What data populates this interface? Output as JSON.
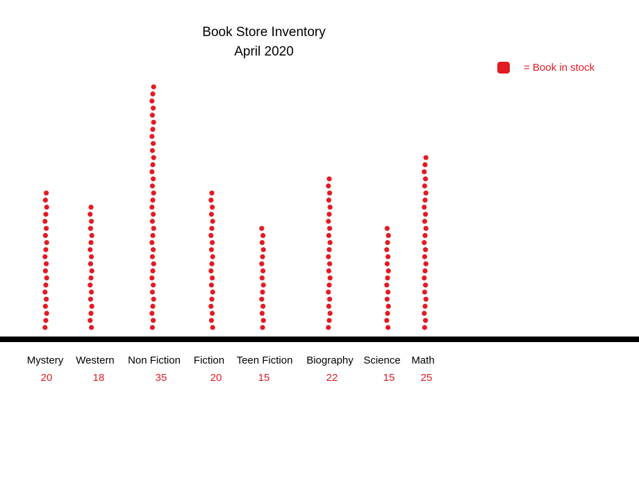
{
  "title": "Book Store Inventory",
  "subtitle": "April 2020",
  "legend": {
    "label": "= Book in stock"
  },
  "colors": {
    "dot": "#e31b23",
    "axis": "#000000",
    "count": "#e31b23"
  },
  "chart_data": {
    "type": "dot plot",
    "title": "Book Store Inventory April 2020",
    "categories": [
      "Mystery",
      "Western",
      "Non Fiction",
      "Fiction",
      "Teen Fiction",
      "Biography",
      "Science",
      "Math"
    ],
    "values": [
      20,
      18,
      35,
      20,
      15,
      22,
      15,
      25
    ],
    "legend": "= Book in stock",
    "legend_position": "top-right"
  }
}
